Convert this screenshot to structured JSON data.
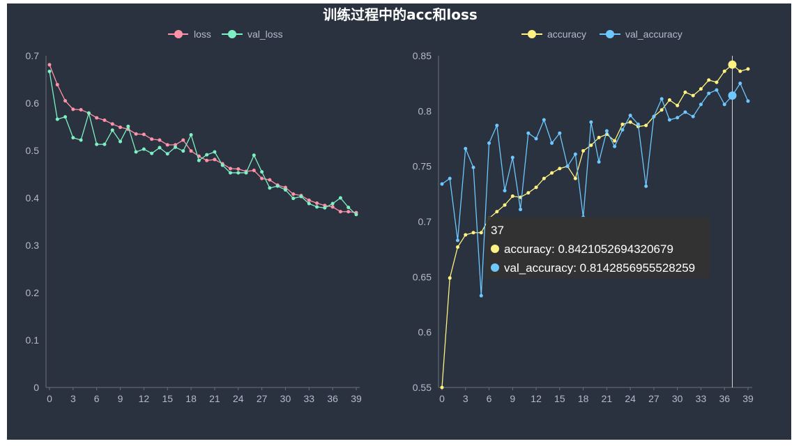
{
  "title": "训练过程中的acc和loss",
  "colors": {
    "background": "#29323e",
    "loss": "#ff92a9",
    "val_loss": "#7ff0c3",
    "accuracy": "#fff282",
    "val_accuracy": "#6ec8ff",
    "axis": "#6e7079",
    "tick_text": "#b9b8ce"
  },
  "chart_data": [
    {
      "type": "line",
      "x": [
        0,
        1,
        2,
        3,
        4,
        5,
        6,
        7,
        8,
        9,
        10,
        11,
        12,
        13,
        14,
        15,
        16,
        17,
        18,
        19,
        20,
        21,
        22,
        23,
        24,
        25,
        26,
        27,
        28,
        29,
        30,
        31,
        32,
        33,
        34,
        35,
        36,
        37,
        38,
        39
      ],
      "xticks": [
        "0",
        "3",
        "6",
        "9",
        "12",
        "15",
        "18",
        "21",
        "24",
        "27",
        "30",
        "33",
        "36",
        "39"
      ],
      "yticks": [
        "0",
        "0.1",
        "0.2",
        "0.3",
        "0.4",
        "0.5",
        "0.6",
        "0.7"
      ],
      "ylim": [
        0,
        0.7
      ],
      "legend": "top-center",
      "series": [
        {
          "name": "loss",
          "values": [
            0.681,
            0.639,
            0.605,
            0.587,
            0.586,
            0.579,
            0.569,
            0.564,
            0.556,
            0.549,
            0.545,
            0.535,
            0.534,
            0.524,
            0.522,
            0.512,
            0.512,
            0.522,
            0.499,
            0.488,
            0.479,
            0.481,
            0.472,
            0.462,
            0.461,
            0.456,
            0.458,
            0.441,
            0.438,
            0.427,
            0.422,
            0.408,
            0.405,
            0.395,
            0.389,
            0.384,
            0.381,
            0.371,
            0.371,
            0.369
          ]
        },
        {
          "name": "val_loss",
          "values": [
            0.667,
            0.566,
            0.571,
            0.527,
            0.522,
            0.579,
            0.513,
            0.513,
            0.543,
            0.519,
            0.551,
            0.497,
            0.503,
            0.494,
            0.506,
            0.493,
            0.507,
            0.499,
            0.533,
            0.479,
            0.491,
            0.497,
            0.469,
            0.453,
            0.453,
            0.453,
            0.49,
            0.455,
            0.421,
            0.425,
            0.417,
            0.399,
            0.403,
            0.388,
            0.381,
            0.379,
            0.388,
            0.4,
            0.38,
            0.365
          ]
        }
      ]
    },
    {
      "type": "line",
      "x": [
        0,
        1,
        2,
        3,
        4,
        5,
        6,
        7,
        8,
        9,
        10,
        11,
        12,
        13,
        14,
        15,
        16,
        17,
        18,
        19,
        20,
        21,
        22,
        23,
        24,
        25,
        26,
        27,
        28,
        29,
        30,
        31,
        32,
        33,
        34,
        35,
        36,
        37,
        38,
        39
      ],
      "xticks": [
        "0",
        "3",
        "6",
        "9",
        "12",
        "15",
        "18",
        "21",
        "24",
        "27",
        "30",
        "33",
        "36",
        "39"
      ],
      "yticks": [
        "0.55",
        "0.6",
        "0.65",
        "0.7",
        "0.75",
        "0.8",
        "0.85"
      ],
      "ylim": [
        0.55,
        0.85
      ],
      "legend": "top-center",
      "series": [
        {
          "name": "accuracy",
          "values": [
            0.55,
            0.649,
            0.677,
            0.688,
            0.69,
            0.69,
            0.703,
            0.709,
            0.715,
            0.723,
            0.722,
            0.726,
            0.731,
            0.739,
            0.744,
            0.748,
            0.75,
            0.739,
            0.764,
            0.769,
            0.776,
            0.779,
            0.773,
            0.788,
            0.79,
            0.786,
            0.787,
            0.795,
            0.801,
            0.81,
            0.805,
            0.817,
            0.814,
            0.82,
            0.828,
            0.826,
            0.836,
            0.842,
            0.836,
            0.838
          ]
        },
        {
          "name": "val_accuracy",
          "values": [
            0.734,
            0.739,
            0.683,
            0.766,
            0.749,
            0.633,
            0.771,
            0.787,
            0.728,
            0.758,
            0.711,
            0.78,
            0.775,
            0.792,
            0.771,
            0.78,
            0.75,
            0.761,
            0.704,
            0.79,
            0.754,
            0.782,
            0.768,
            0.783,
            0.796,
            0.788,
            0.732,
            0.795,
            0.811,
            0.792,
            0.794,
            0.799,
            0.795,
            0.806,
            0.816,
            0.819,
            0.806,
            0.814,
            0.825,
            0.809
          ]
        }
      ],
      "tooltip": {
        "index": 37,
        "header": "37",
        "lines": [
          "accuracy: 0.8421052694320679",
          "val_accuracy: 0.8142856955528259"
        ]
      }
    }
  ]
}
